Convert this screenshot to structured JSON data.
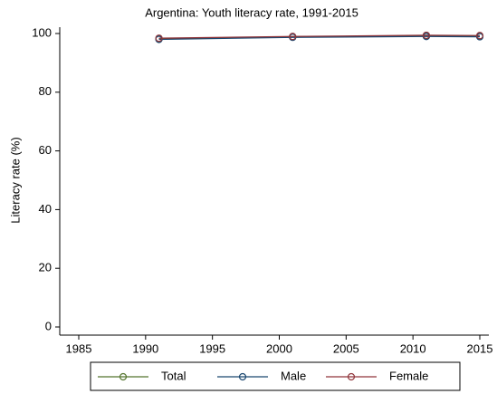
{
  "chart_data": {
    "type": "line",
    "title": "Argentina: Youth literacy rate, 1991-2015",
    "y_label": "Literacy rate (%)",
    "x": [
      1991,
      2001,
      2011,
      2015
    ],
    "series": [
      {
        "name": "Total",
        "color": "#55752f",
        "values": [
          98.2,
          98.9,
          99.2,
          99.1
        ]
      },
      {
        "name": "Male",
        "color": "#1a476f",
        "values": [
          98.0,
          98.7,
          99.0,
          98.9
        ]
      },
      {
        "name": "Female",
        "color": "#90353b",
        "values": [
          98.4,
          99.0,
          99.4,
          99.3
        ]
      }
    ],
    "xlim": [
      1985,
      2015
    ],
    "xticks": [
      1985,
      1990,
      1995,
      2000,
      2005,
      2010,
      2015
    ],
    "ylim": [
      0,
      100
    ],
    "yticks": [
      0,
      20,
      40,
      60,
      80,
      100
    ],
    "grid": false,
    "legend": "bottom"
  }
}
